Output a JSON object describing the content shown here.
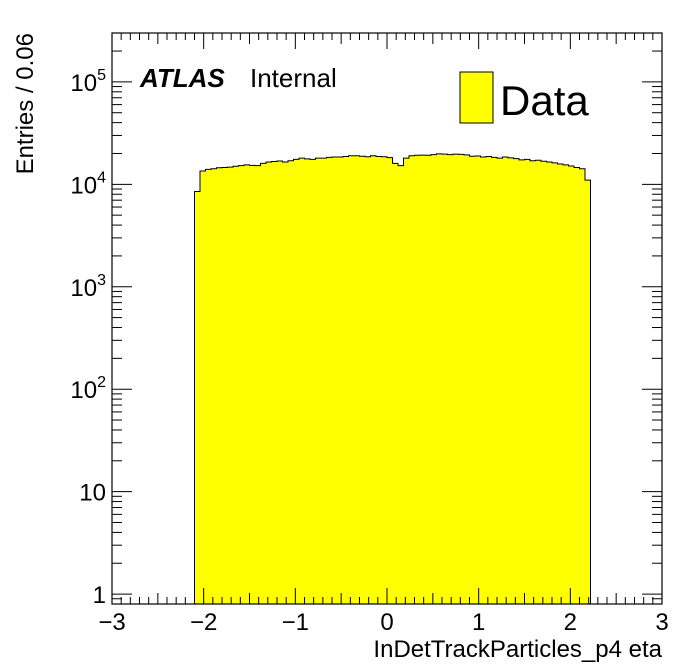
{
  "chart_data": {
    "type": "bar",
    "title": "",
    "xlabel": "InDetTrackParticles_p4 eta",
    "ylabel": "Entries / 0.06",
    "xlim": [
      -3,
      3
    ],
    "ylim": [
      0.8,
      300000
    ],
    "y_scale": "log",
    "x_tick_labels": [
      "−3",
      "−2",
      "−1",
      "0",
      "1",
      "2",
      "3"
    ],
    "y_tick_labels": [
      {
        "base": "1",
        "exp": ""
      },
      {
        "base": "10",
        "exp": ""
      },
      {
        "base": "10",
        "exp": "2"
      },
      {
        "base": "10",
        "exp": "3"
      },
      {
        "base": "10",
        "exp": "4"
      },
      {
        "base": "10",
        "exp": "5"
      }
    ],
    "atlas_label": "ATLAS",
    "atlas_sublabel": "Internal",
    "legend_position": "top-right",
    "series": [
      {
        "name": "Data",
        "color": "#ffff00",
        "bin_edges_start": -2.1,
        "bin_width": 0.06,
        "values": [
          8500,
          13500,
          14000,
          14200,
          14500,
          14600,
          14700,
          15000,
          15200,
          15500,
          15300,
          15200,
          16000,
          16500,
          16700,
          16900,
          16500,
          17000,
          17500,
          18000,
          17700,
          17500,
          18000,
          18000,
          18300,
          18500,
          18500,
          18700,
          19000,
          19000,
          18800,
          18600,
          19000,
          18700,
          18600,
          18200,
          16000,
          15200,
          18000,
          19000,
          19200,
          19300,
          19200,
          19500,
          19800,
          19700,
          19500,
          19700,
          19600,
          19400,
          18800,
          18900,
          18500,
          18700,
          18300,
          18000,
          18500,
          18100,
          17800,
          17300,
          17500,
          17000,
          17200,
          16800,
          16500,
          16200,
          15800,
          15500,
          15100,
          14600,
          14200,
          11000
        ]
      }
    ]
  }
}
